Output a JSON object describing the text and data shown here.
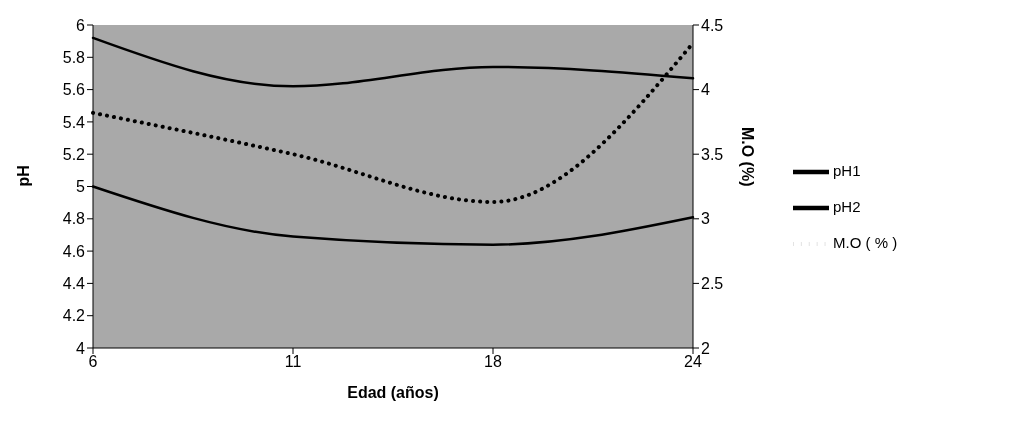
{
  "chart_data": {
    "type": "line",
    "xlabel": "Edad (años)",
    "ylabel": "pH",
    "y2label": "M.O (%)",
    "categories": [
      "6",
      "11",
      "18",
      "24"
    ],
    "series": [
      {
        "name": "pH1",
        "color": "#000000",
        "line_style": "solid",
        "values": [
          5.92,
          5.62,
          5.74,
          5.67
        ]
      },
      {
        "name": "pH2",
        "color": "#000000",
        "line_style": "solid",
        "values": [
          5.0,
          4.69,
          4.64,
          4.81
        ]
      },
      {
        "name": "M.O ( % )",
        "color": "#000000",
        "line_style": "dotted",
        "axis": "y2",
        "values": [
          3.82,
          3.5,
          3.13,
          4.36
        ]
      }
    ],
    "ylim": [
      4,
      6
    ],
    "yticks": [
      4,
      4.2,
      4.4,
      4.6,
      4.8,
      5,
      5.2,
      5.4,
      5.6,
      5.8,
      6
    ],
    "y2lim": [
      2,
      4.5
    ],
    "y2ticks": [
      2,
      2.5,
      3,
      3.5,
      4,
      4.5
    ],
    "grid": false,
    "legend": "right",
    "marker": "none"
  }
}
